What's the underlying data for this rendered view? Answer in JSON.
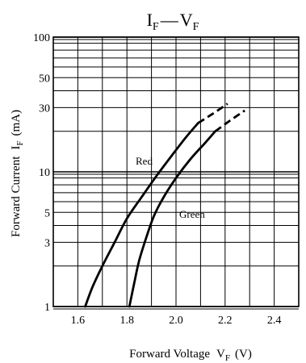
{
  "chart_data": {
    "type": "line",
    "title": "I_F — V_F",
    "title_parts": {
      "main": "I",
      "main_sub": "F",
      "dash": "—",
      "second": "V",
      "second_sub": "F"
    },
    "xlabel": {
      "text": "Forward Voltage",
      "symbol": "V",
      "sub": "F",
      "unit": "(V)"
    },
    "ylabel": {
      "text": "Forward Current",
      "symbol": "I",
      "sub": "F",
      "unit": "(mA)"
    },
    "x_scale": "linear",
    "y_scale": "log",
    "xlim": [
      1.5,
      2.5
    ],
    "ylim": [
      1,
      100
    ],
    "x_ticks": [
      1.6,
      1.8,
      2.0,
      2.2,
      2.4
    ],
    "x_tick_labels": [
      "1.6",
      "1.8",
      "2.0",
      "2.2",
      "2.4"
    ],
    "y_ticks": [
      1,
      3,
      5,
      10,
      30,
      50,
      100
    ],
    "y_tick_labels": [
      "1",
      "3",
      "5",
      "10",
      "30",
      "50",
      "100"
    ],
    "grid": true,
    "series": [
      {
        "name": "Red",
        "color": "#000000",
        "solid": {
          "x": [
            1.63,
            1.66,
            1.7,
            1.75,
            1.8,
            1.86,
            1.92,
            1.98,
            2.04,
            2.09
          ],
          "y": [
            1.0,
            1.4,
            2.0,
            3.0,
            4.5,
            6.5,
            9.3,
            13.0,
            18.0,
            23.0
          ]
        },
        "dashed": {
          "x": [
            2.09,
            2.15,
            2.21
          ],
          "y": [
            23.0,
            27.0,
            32.0
          ]
        }
      },
      {
        "name": "Green",
        "color": "#000000",
        "solid": {
          "x": [
            1.81,
            1.83,
            1.85,
            1.88,
            1.91,
            1.95,
            2.0,
            2.06,
            2.12,
            2.16
          ],
          "y": [
            1.0,
            1.5,
            2.2,
            3.3,
            4.7,
            6.5,
            9.0,
            12.5,
            16.5,
            20.0
          ]
        },
        "dashed": {
          "x": [
            2.16,
            2.22,
            2.28
          ],
          "y": [
            20.0,
            24.0,
            28.5
          ]
        }
      }
    ]
  }
}
